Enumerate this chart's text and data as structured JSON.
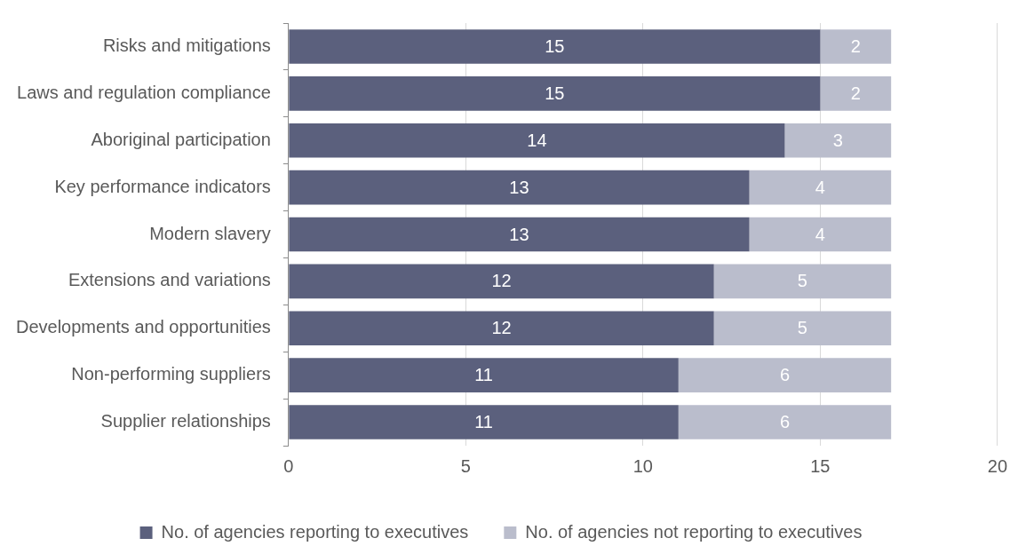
{
  "chart_data": {
    "type": "bar",
    "orientation": "horizontal",
    "stacked": true,
    "categories": [
      "Risks and mitigations",
      "Laws and regulation compliance",
      "Aboriginal participation",
      "Key performance indicators",
      "Modern slavery",
      "Extensions and variations",
      "Developments and opportunities",
      "Non-performing suppliers",
      "Supplier relationships"
    ],
    "series": [
      {
        "name": "No. of agencies reporting to executives",
        "color": "#5b607d",
        "values": [
          15,
          15,
          14,
          13,
          13,
          12,
          12,
          11,
          11
        ]
      },
      {
        "name": "No. of agencies not reporting to executives",
        "color": "#babdcc",
        "values": [
          2,
          2,
          3,
          4,
          4,
          5,
          5,
          6,
          6
        ]
      }
    ],
    "xlim": [
      0,
      20
    ],
    "xticks": [
      0,
      5,
      10,
      15,
      20
    ],
    "grid": "x",
    "legend": "bottom",
    "data_labels": true
  }
}
